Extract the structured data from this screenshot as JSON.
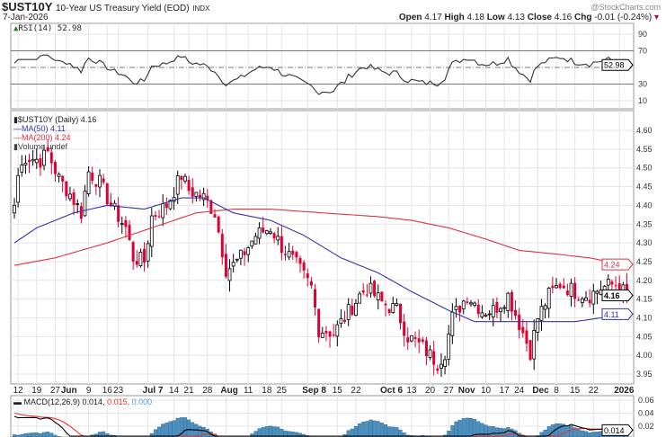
{
  "header": {
    "symbol": "$UST10Y",
    "name": "10-Year US Treasury Yield (EOD)",
    "exchange": "INDX",
    "date": "7-Jan-2026",
    "watermark": "@StockCharts.com",
    "open_label": "Open",
    "open": "4.17",
    "high_label": "High",
    "high": "4.18",
    "low_label": "Low",
    "low": "4.13",
    "close_label": "Close",
    "close": "4.16",
    "chg_label": "Chg",
    "chg": "-0.01 (-0.24%)",
    "chg_color": "#cc0033"
  },
  "legend": {
    "rsi": "RSI(14) 52.98",
    "price": "$UST10Y (Daily) 4.16",
    "ma50": "MA(50) 4.11",
    "ma200": "MA(200) 4.24",
    "volume": "Volume undef",
    "macd_prefix": "MACD(12,26,9) 0.014,",
    "macd_signal": " 0.015,",
    "macd_hist": " 0.000"
  },
  "tags": {
    "rsi": "52.98",
    "price": "4.16",
    "ma50": "4.11",
    "ma200": "4.24",
    "macd": "0.014"
  },
  "colors": {
    "up": "#000000",
    "down": "#dd0033",
    "ma50": "#3333aa",
    "ma200": "#dd3344",
    "macd": "#000000",
    "signal": "#ee3333",
    "hist": "#4a90c0"
  },
  "chart_data": {
    "type": "candlestick",
    "title": "$UST10Y 10-Year US Treasury Yield (EOD)",
    "ylim": [
      3.93,
      4.63
    ],
    "yticks": [
      "4.60",
      "4.55",
      "4.50",
      "4.45",
      "4.40",
      "4.35",
      "4.30",
      "4.25",
      "4.20",
      "4.15",
      "4.10",
      "4.05",
      "4.00",
      "3.95"
    ],
    "rsi_ticks": [
      "90",
      "70",
      "50",
      "30",
      "10"
    ],
    "macd_ticks": [
      "0.06",
      "0.04",
      "0.02"
    ],
    "xticks": [
      "12",
      "19",
      "27",
      "Jun",
      "9",
      "16",
      "23",
      "Jul 7",
      "14",
      "21",
      "28",
      "Aug",
      "11",
      "18",
      "25",
      "Sep 8",
      "15",
      "22",
      "Oct 6",
      "13",
      "20",
      "27",
      "Nov",
      "10",
      "17",
      "24",
      "Dec",
      "8",
      "15",
      "22",
      "2026"
    ],
    "xtick_days": [
      1,
      6,
      11,
      14,
      20,
      25,
      28,
      36,
      43,
      47,
      52,
      57,
      63,
      68,
      72,
      79,
      87,
      92,
      100,
      107,
      112,
      117,
      121,
      127,
      132,
      136,
      141,
      146,
      151,
      156,
      163
    ],
    "days": 165,
    "close_keyframes": [
      [
        0,
        4.4
      ],
      [
        1,
        4.48
      ],
      [
        3,
        4.53
      ],
      [
        7,
        4.52
      ],
      [
        9,
        4.54
      ],
      [
        12,
        4.47
      ],
      [
        15,
        4.43
      ],
      [
        18,
        4.38
      ],
      [
        20,
        4.49
      ],
      [
        23,
        4.46
      ],
      [
        26,
        4.4
      ],
      [
        30,
        4.34
      ],
      [
        32,
        4.26
      ],
      [
        35,
        4.25
      ],
      [
        37,
        4.37
      ],
      [
        41,
        4.4
      ],
      [
        45,
        4.48
      ],
      [
        47,
        4.44
      ],
      [
        51,
        4.42
      ],
      [
        54,
        4.38
      ],
      [
        57,
        4.23
      ],
      [
        59,
        4.24
      ],
      [
        61,
        4.26
      ],
      [
        65,
        4.32
      ],
      [
        69,
        4.34
      ],
      [
        72,
        4.29
      ],
      [
        76,
        4.24
      ],
      [
        80,
        4.18
      ],
      [
        82,
        4.07
      ],
      [
        86,
        4.06
      ],
      [
        89,
        4.1
      ],
      [
        93,
        4.16
      ],
      [
        95,
        4.18
      ],
      [
        99,
        4.14
      ],
      [
        103,
        4.12
      ],
      [
        106,
        4.05
      ],
      [
        110,
        4.02
      ],
      [
        114,
        3.98
      ],
      [
        116,
        4.01
      ],
      [
        118,
        4.1
      ],
      [
        122,
        4.16
      ],
      [
        126,
        4.12
      ],
      [
        129,
        4.12
      ],
      [
        133,
        4.16
      ],
      [
        137,
        4.06
      ],
      [
        139,
        4.01
      ],
      [
        141,
        4.1
      ],
      [
        144,
        4.16
      ],
      [
        147,
        4.19
      ],
      [
        151,
        4.17
      ],
      [
        155,
        4.16
      ],
      [
        158,
        4.18
      ],
      [
        162,
        4.19
      ],
      [
        165,
        4.16
      ]
    ],
    "ma50_keyframes": [
      [
        0,
        4.3
      ],
      [
        6,
        4.34
      ],
      [
        16,
        4.38
      ],
      [
        25,
        4.4
      ],
      [
        35,
        4.39
      ],
      [
        45,
        4.42
      ],
      [
        51,
        4.42
      ],
      [
        59,
        4.38
      ],
      [
        69,
        4.36
      ],
      [
        78,
        4.32
      ],
      [
        88,
        4.26
      ],
      [
        98,
        4.22
      ],
      [
        107,
        4.17
      ],
      [
        117,
        4.12
      ],
      [
        124,
        4.09
      ],
      [
        131,
        4.09
      ],
      [
        141,
        4.09
      ],
      [
        151,
        4.09
      ],
      [
        158,
        4.1
      ],
      [
        165,
        4.11
      ]
    ],
    "ma200_keyframes": [
      [
        0,
        4.24
      ],
      [
        11,
        4.26
      ],
      [
        25,
        4.3
      ],
      [
        40,
        4.35
      ],
      [
        49,
        4.38
      ],
      [
        59,
        4.39
      ],
      [
        69,
        4.39
      ],
      [
        83,
        4.38
      ],
      [
        98,
        4.37
      ],
      [
        107,
        4.36
      ],
      [
        117,
        4.34
      ],
      [
        127,
        4.31
      ],
      [
        136,
        4.28
      ],
      [
        146,
        4.27
      ],
      [
        155,
        4.26
      ],
      [
        165,
        4.24
      ]
    ]
  }
}
